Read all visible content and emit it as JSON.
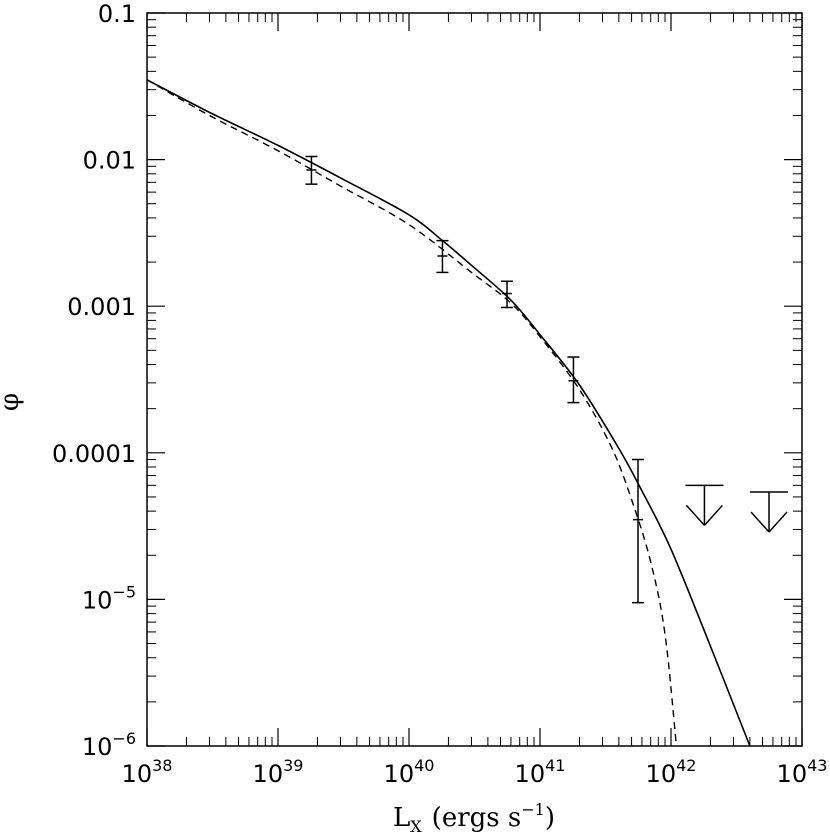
{
  "chart_data": {
    "type": "scatter",
    "title": "",
    "xlabel": "L",
    "xlabel_sub": "X",
    "xlabel_rest": "(ergs s",
    "xlabel_sup": "−1",
    "xlabel_end": ")",
    "ylabel": "φ",
    "x_scale": "log",
    "y_scale": "log",
    "xlim": [
      1e+38,
      1e+43
    ],
    "ylim": [
      1e-06,
      0.1
    ],
    "grid": false,
    "x_ticks": [
      {
        "value": 1e+38,
        "base": "10",
        "exp": "38"
      },
      {
        "value": 1e+39,
        "base": "10",
        "exp": "39"
      },
      {
        "value": 1e+40,
        "base": "10",
        "exp": "40"
      },
      {
        "value": 1e+41,
        "base": "10",
        "exp": "41"
      },
      {
        "value": 1e+42,
        "base": "10",
        "exp": "42"
      },
      {
        "value": 1e+43,
        "base": "10",
        "exp": "43"
      }
    ],
    "y_ticks": [
      {
        "value": 0.1,
        "text": "0.1"
      },
      {
        "value": 0.01,
        "text": "0.01"
      },
      {
        "value": 0.001,
        "text": "0.001"
      },
      {
        "value": 0.0001,
        "text": "0.0001"
      },
      {
        "value": 1e-05,
        "base": "10",
        "exp": "−5"
      },
      {
        "value": 1e-06,
        "base": "10",
        "exp": "−6"
      }
    ],
    "series": [
      {
        "style": "solid",
        "points": [
          [
            1e+38,
            0.035
          ],
          [
            3e+38,
            0.021
          ],
          [
            1e+39,
            0.0125
          ],
          [
            3e+39,
            0.0075
          ],
          [
            1e+40,
            0.0042
          ],
          [
            1.8e+40,
            0.0028
          ],
          [
            3e+40,
            0.0019
          ],
          [
            6e+40,
            0.0011
          ],
          [
            1e+41,
            0.00064
          ],
          [
            2e+41,
            0.00029
          ],
          [
            4e+41,
            0.000107
          ],
          [
            6e+41,
            5.5e-05
          ],
          [
            1e+42,
            2.2e-05
          ],
          [
            2e+42,
            4.8e-06
          ],
          [
            4e+42,
            1e-06
          ]
        ]
      },
      {
        "style": "dashed",
        "points": [
          [
            1e+38,
            0.035
          ],
          [
            3e+38,
            0.02
          ],
          [
            1e+39,
            0.0115
          ],
          [
            3e+39,
            0.0066
          ],
          [
            1e+40,
            0.0036
          ],
          [
            3e+40,
            0.0017
          ],
          [
            6e+40,
            0.00105
          ],
          [
            1e+41,
            0.00062
          ],
          [
            2e+41,
            0.00027
          ],
          [
            3.5e+41,
            0.00011
          ],
          [
            5e+41,
            4.8e-05
          ],
          [
            7e+41,
            1.8e-05
          ],
          [
            9e+41,
            5.8e-06
          ],
          [
            1.1e+42,
            1e-06
          ]
        ]
      }
    ],
    "data_points": [
      {
        "x": 1.8e+39,
        "y": 0.0085,
        "ylow": 0.0068,
        "yhigh": 0.0105
      },
      {
        "x": 1.8e+40,
        "y": 0.0022,
        "ylow": 0.0017,
        "yhigh": 0.0028
      },
      {
        "x": 5.6e+40,
        "y": 0.00122,
        "ylow": 0.00098,
        "yhigh": 0.00148
      },
      {
        "x": 1.8e+41,
        "y": 0.00031,
        "ylow": 0.00022,
        "yhigh": 0.00045
      },
      {
        "x": 5.6e+41,
        "y": 3.5e-05,
        "ylow": 9.5e-06,
        "yhigh": 9e-05
      }
    ],
    "upper_limits": [
      {
        "x": 1.8e+42,
        "y": 6e-05
      },
      {
        "x": 5.6e+42,
        "y": 5.4e-05
      }
    ]
  }
}
